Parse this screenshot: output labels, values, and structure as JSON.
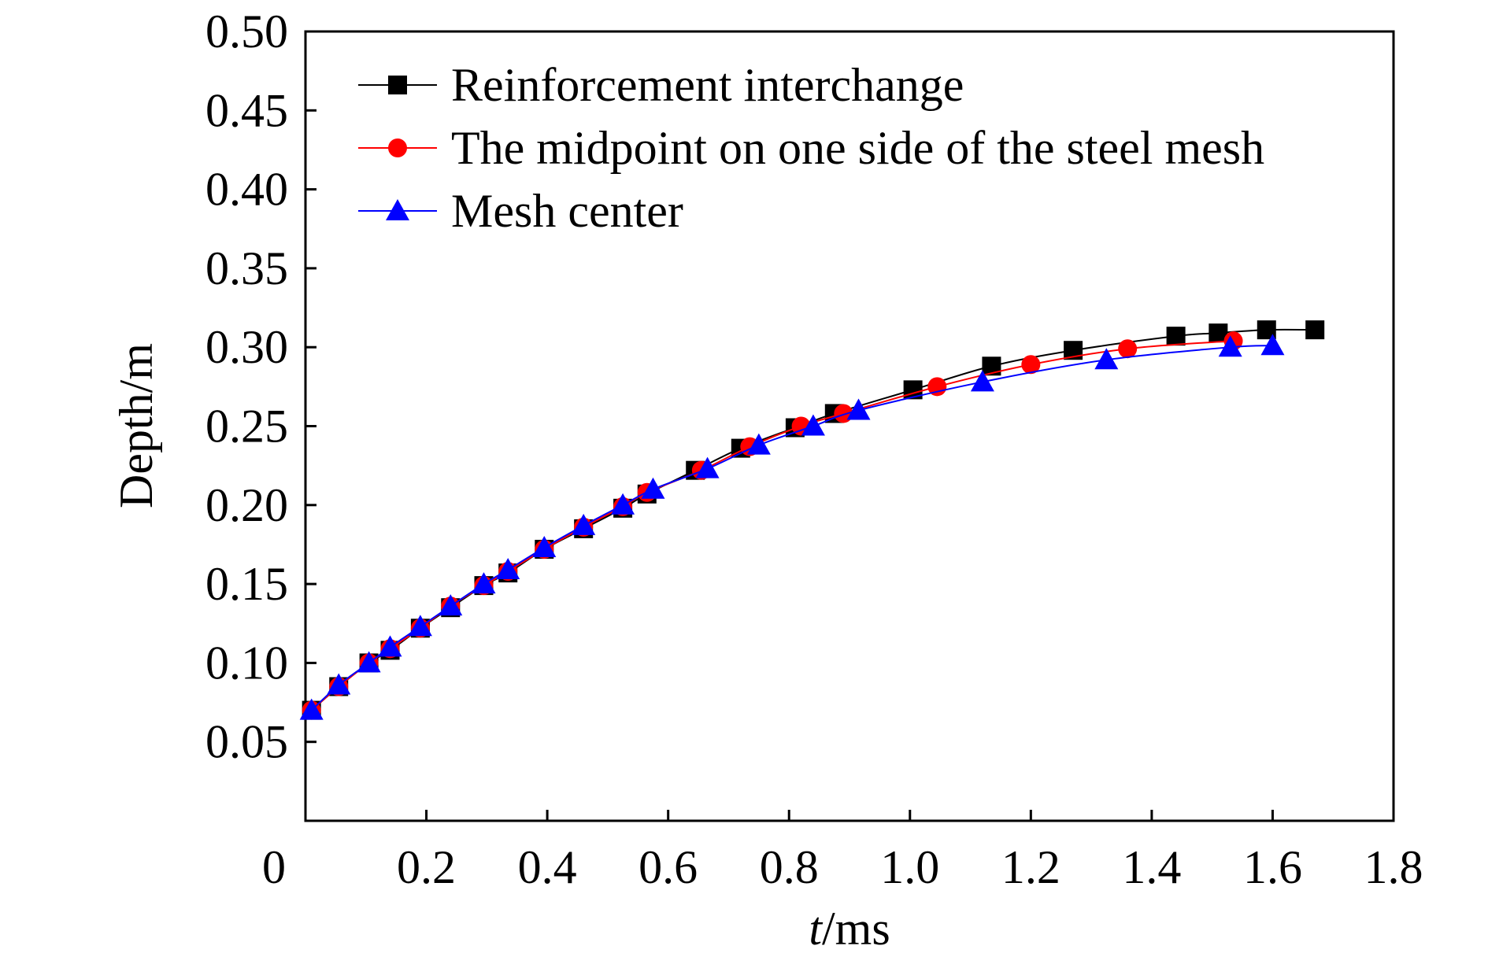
{
  "chart_data": {
    "type": "line",
    "title": "",
    "xlabel_italic": "t",
    "xlabel_rest": "/ms",
    "ylabel": "Depth/m",
    "xlim": [
      0,
      1.8
    ],
    "ylim": [
      0,
      0.5
    ],
    "x_ticks": [
      0,
      0.2,
      0.4,
      0.6,
      0.8,
      1.0,
      1.2,
      1.4,
      1.6,
      1.8
    ],
    "x_tick_labels": [
      "0",
      "0.2",
      "0.4",
      "0.6",
      "0.8",
      "1.0",
      "1.2",
      "1.4",
      "1.6",
      "1.8"
    ],
    "y_ticks": [
      0.05,
      0.1,
      0.15,
      0.2,
      0.25,
      0.3,
      0.35,
      0.4,
      0.45,
      0.5
    ],
    "y_tick_labels": [
      "0.05",
      "0.10",
      "0.15",
      "0.20",
      "0.25",
      "0.30",
      "0.35",
      "0.40",
      "0.45",
      "0.50"
    ],
    "grid": false,
    "legend_position": "top-left",
    "series": [
      {
        "name": "Reinforcement interchange",
        "color": "#000000",
        "marker": "square",
        "x": [
          0.01,
          0.055,
          0.105,
          0.14,
          0.19,
          0.24,
          0.295,
          0.335,
          0.395,
          0.46,
          0.525,
          0.565,
          0.645,
          0.72,
          0.81,
          0.875,
          1.005,
          1.135,
          1.27,
          1.44,
          1.51,
          1.59,
          1.67
        ],
        "y": [
          0.07,
          0.085,
          0.1,
          0.108,
          0.122,
          0.135,
          0.149,
          0.157,
          0.172,
          0.185,
          0.198,
          0.207,
          0.222,
          0.236,
          0.249,
          0.258,
          0.273,
          0.288,
          0.298,
          0.307,
          0.309,
          0.311,
          0.311
        ]
      },
      {
        "name": "The midpoint on one side of the steel mesh",
        "color": "#ff0000",
        "marker": "circle",
        "x": [
          0.01,
          0.055,
          0.105,
          0.14,
          0.19,
          0.24,
          0.295,
          0.335,
          0.395,
          0.46,
          0.525,
          0.565,
          0.655,
          0.735,
          0.82,
          0.89,
          1.045,
          1.2,
          1.36,
          1.535
        ],
        "y": [
          0.07,
          0.085,
          0.1,
          0.109,
          0.122,
          0.136,
          0.149,
          0.158,
          0.172,
          0.186,
          0.199,
          0.208,
          0.222,
          0.237,
          0.25,
          0.258,
          0.275,
          0.289,
          0.299,
          0.304
        ]
      },
      {
        "name": "Mesh center",
        "color": "#0000ff",
        "marker": "triangle",
        "x": [
          0.01,
          0.055,
          0.105,
          0.14,
          0.19,
          0.24,
          0.295,
          0.335,
          0.395,
          0.46,
          0.525,
          0.575,
          0.665,
          0.75,
          0.84,
          0.915,
          1.12,
          1.325,
          1.53,
          1.6
        ],
        "y": [
          0.07,
          0.086,
          0.1,
          0.11,
          0.123,
          0.136,
          0.15,
          0.159,
          0.173,
          0.187,
          0.2,
          0.21,
          0.223,
          0.238,
          0.25,
          0.26,
          0.278,
          0.292,
          0.3,
          0.301
        ]
      }
    ]
  }
}
